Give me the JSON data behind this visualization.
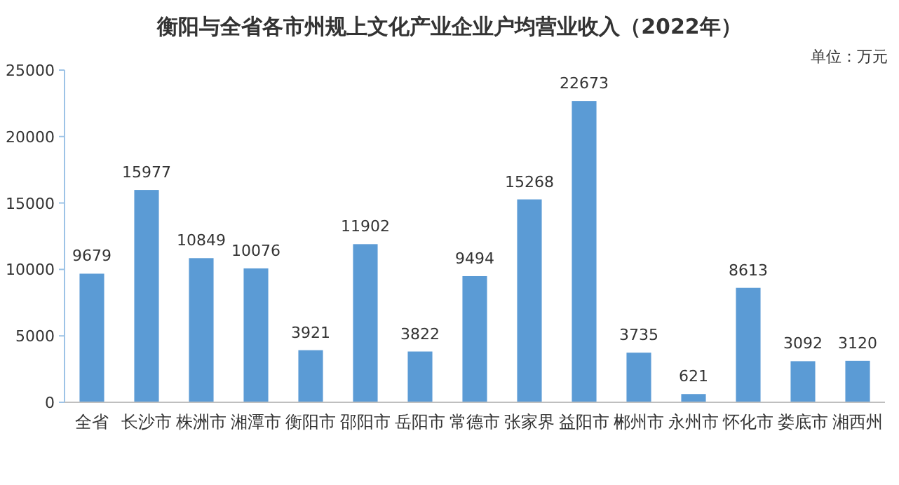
{
  "chart_data": {
    "type": "bar",
    "title": "衡阳与全省各市州规上文化产业企业户均营业收入（2022年）",
    "annotations": [
      "单位：万元"
    ],
    "categories": [
      "全省",
      "长沙市",
      "株洲市",
      "湘潭市",
      "衡阳市",
      "邵阳市",
      "岳阳市",
      "常德市",
      "张家界",
      "益阳市",
      "郴州市",
      "永州市",
      "怀化市",
      "娄底市",
      "湘西州"
    ],
    "values": [
      9679,
      15977,
      10849,
      10076,
      3921,
      11902,
      3822,
      9494,
      15268,
      22673,
      3735,
      621,
      8613,
      3092,
      3120
    ],
    "color": "#5b9bd5",
    "ylim": [
      0,
      25000
    ],
    "yticks": [
      0,
      5000,
      10000,
      15000,
      20000,
      25000
    ],
    "grid": false,
    "data_labels": true
  }
}
